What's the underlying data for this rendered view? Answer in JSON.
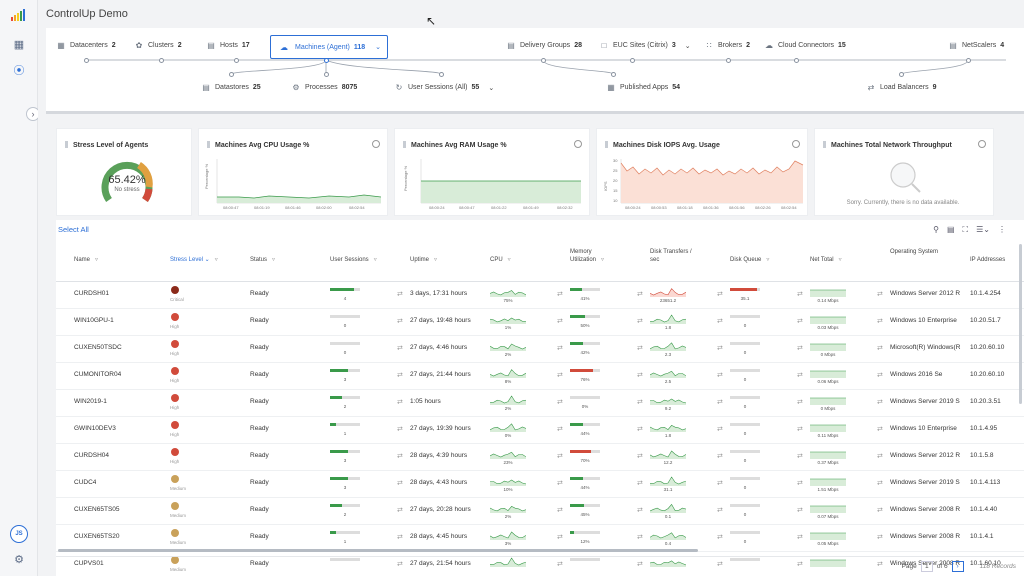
{
  "app": {
    "title": "ControlUp Demo"
  },
  "colors": {
    "accent": "#2d6fd6",
    "ok": "#3a9a4a",
    "critical": "#8b2a1a",
    "high": "#d14b3b",
    "medium": "#c9a15a",
    "spark": "#3a9a4a",
    "iops": "#e8a080"
  },
  "topology": {
    "row1": [
      {
        "label": "Datacenters",
        "count": "2",
        "icon": "datacenter-icon"
      },
      {
        "label": "Clusters",
        "count": "2",
        "icon": "cluster-icon"
      },
      {
        "label": "Hosts",
        "count": "17",
        "icon": "host-icon"
      },
      {
        "label": "Machines (Agent)",
        "count": "118",
        "icon": "machines-cloud-icon",
        "selected": true
      },
      {
        "label": "Delivery Groups",
        "count": "28",
        "icon": "delivery-groups-icon"
      },
      {
        "label": "EUC Sites (Citrix)",
        "count": "3",
        "icon": "euc-sites-icon"
      },
      {
        "label": "Brokers",
        "count": "2",
        "icon": "brokers-icon"
      },
      {
        "label": "Cloud Connectors",
        "count": "15",
        "icon": "cloud-connector-icon"
      },
      {
        "label": "NetScalers",
        "count": "4",
        "icon": "netscaler-icon"
      }
    ],
    "row2": [
      {
        "label": "Datastores",
        "count": "25",
        "icon": "datastore-icon"
      },
      {
        "label": "Processes",
        "count": "8075",
        "icon": "processes-icon"
      },
      {
        "label": "User Sessions (All)",
        "count": "55",
        "icon": "user-sessions-icon"
      },
      {
        "label": "Published Apps",
        "count": "54",
        "icon": "published-apps-icon"
      },
      {
        "label": "Load Balancers",
        "count": "9",
        "icon": "load-balancer-icon"
      }
    ]
  },
  "widgets": {
    "stress": {
      "title": "Stress Level of Agents",
      "value": "65.42",
      "unit": "%",
      "sub": "No stress"
    },
    "cpu": {
      "title": "Machines Avg CPU Usage %",
      "ylabel": "Percentage %",
      "ticks": [
        "08:00:47",
        "08:01:19",
        "08:01:46",
        "08:02:00",
        "08:02:54"
      ]
    },
    "ram": {
      "title": "Machines Avg RAM Usage %",
      "ylabel": "Percentage %",
      "ticks": [
        "08:00:24",
        "08:00:47",
        "08:01:22",
        "08:01:49",
        "08:02:32"
      ]
    },
    "iops": {
      "title": "Machines Disk IOPS Avg. Usage",
      "ylabel": "IOPS",
      "yticks": [
        "30",
        "25",
        "20",
        "15",
        "10"
      ],
      "ticks": [
        "08:00:24",
        "08:00:53",
        "08:01:18",
        "08:01:36",
        "08:01:56",
        "08:02:26",
        "08:02:54"
      ]
    },
    "net": {
      "title": "Machines Total Network Throughput",
      "nodata": "Sorry. Currently, there is no data available."
    }
  },
  "grid": {
    "select_all": "Select All",
    "headers": [
      "Name",
      "Stress Level",
      "Status",
      "User Sessions",
      "Uptime",
      "CPU",
      "Memory Utilization",
      "Disk Transfers / sec",
      "Disk Queue",
      "Net Total",
      "Operating System",
      "IP Addresses"
    ],
    "rows": [
      {
        "name": "CURDSH01",
        "stress": "Critical",
        "status": "Ready",
        "sessions": "4",
        "uptime": "3 days, 17:31 hours",
        "cpu": "75%",
        "mem": "41%",
        "disk": "23651.2",
        "queue": "35.1",
        "net": "0.14 Mbps",
        "os": "Windows Server 2012 R",
        "ip": "10.1.4.254"
      },
      {
        "name": "WIN10GPU-1",
        "stress": "High",
        "status": "Ready",
        "sessions": "0",
        "uptime": "27 days, 19:48 hours",
        "cpu": "1%",
        "mem": "50%",
        "disk": "1.8",
        "queue": "0",
        "net": "0.03 Mbps",
        "os": "Windows 10 Enterprise",
        "ip": "10.20.51.7"
      },
      {
        "name": "CUXEN50TSDC",
        "stress": "High",
        "status": "Ready",
        "sessions": "0",
        "uptime": "27 days, 4:46 hours",
        "cpu": "2%",
        "mem": "42%",
        "disk": "2.3",
        "queue": "0",
        "net": "0 Mbps",
        "os": "Microsoft(R) Windows(R",
        "ip": "10.20.60.10"
      },
      {
        "name": "CUMONITOR04",
        "stress": "High",
        "status": "Ready",
        "sessions": "3",
        "uptime": "27 days, 21:44 hours",
        "cpu": "8%",
        "mem": "76%",
        "disk": "2.5",
        "queue": "0",
        "net": "0.06 Mbps",
        "os": "Windows 2016 Se",
        "ip": "10.20.60.10"
      },
      {
        "name": "WIN2019-1",
        "stress": "High",
        "status": "Ready",
        "sessions": "2",
        "uptime": "1:05 hours",
        "cpu": "2%",
        "mem": "0%",
        "disk": "9.2",
        "queue": "0",
        "net": "0 Mbps",
        "os": "Windows Server 2019 S",
        "ip": "10.20.3.51"
      },
      {
        "name": "GWIN10DEV3",
        "stress": "High",
        "status": "Ready",
        "sessions": "1",
        "uptime": "27 days, 19:39 hours",
        "cpu": "0%",
        "mem": "44%",
        "disk": "1.8",
        "queue": "0",
        "net": "0.11 Mbps",
        "os": "Windows 10 Enterprise",
        "ip": "10.1.4.95"
      },
      {
        "name": "CURDSH04",
        "stress": "High",
        "status": "Ready",
        "sessions": "3",
        "uptime": "28 days, 4:39 hours",
        "cpu": "23%",
        "mem": "70%",
        "disk": "12.2",
        "queue": "0",
        "net": "0.37 Mbps",
        "os": "Windows Server 2012 R",
        "ip": "10.1.5.8"
      },
      {
        "name": "CUDC4",
        "stress": "Medium",
        "status": "Ready",
        "sessions": "3",
        "uptime": "28 days, 4:43 hours",
        "cpu": "10%",
        "mem": "44%",
        "disk": "31.1",
        "queue": "0",
        "net": "1.51 Mbps",
        "os": "Windows Server 2019 S",
        "ip": "10.1.4.113"
      },
      {
        "name": "CUXEN65TS05",
        "stress": "Medium",
        "status": "Ready",
        "sessions": "2",
        "uptime": "27 days, 20:28 hours",
        "cpu": "2%",
        "mem": "45%",
        "disk": "0.1",
        "queue": "0",
        "net": "0.07 Mbps",
        "os": "Windows Server 2008 R",
        "ip": "10.1.4.40"
      },
      {
        "name": "CUXEN65TS20",
        "stress": "Medium",
        "status": "Ready",
        "sessions": "1",
        "uptime": "28 days, 4:45 hours",
        "cpu": "3%",
        "mem": "12%",
        "disk": "0.4",
        "queue": "0",
        "net": "0.05 Mbps",
        "os": "Windows Server 2008 R",
        "ip": "10.1.4.1"
      },
      {
        "name": "CUPVS01",
        "stress": "Medium",
        "status": "Ready",
        "sessions": "",
        "uptime": "27 days, 21:54 hours",
        "cpu": "",
        "mem": "",
        "disk": "",
        "queue": "",
        "net": "",
        "os": "Windows Server 2008 R",
        "ip": "10.1.60.10"
      }
    ],
    "pager": {
      "page_label": "Page",
      "page": "1",
      "of": "of 6",
      "records": "118 Records"
    }
  }
}
